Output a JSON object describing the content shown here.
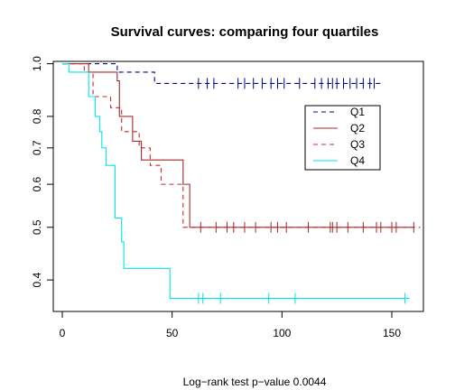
{
  "chart_data": {
    "type": "line",
    "title": "Survival curves: comparing four quartiles",
    "xlabel": "",
    "ylabel": "",
    "xlim": [
      0,
      165
    ],
    "ylim": [
      0.35,
      1.01
    ],
    "y_scale": "log",
    "x_ticks": [
      0,
      50,
      100,
      150
    ],
    "x_tick_labels": [
      "0",
      "50",
      "100",
      "150"
    ],
    "y_ticks": [
      0.4,
      0.5,
      0.6,
      0.7,
      0.8,
      1.0
    ],
    "y_tick_labels": [
      "0.4",
      "0.5",
      "0.6",
      "0.7",
      "0.8",
      "1.0"
    ],
    "grid": false,
    "legend_position": "right",
    "footnote": "Log−rank test p−value  0.0044",
    "series": [
      {
        "name": "Q1",
        "color": "#00008b",
        "dash": "5,4",
        "steps": [
          [
            0,
            1.0
          ],
          [
            25,
            1.0
          ],
          [
            25,
            0.965
          ],
          [
            42,
            0.965
          ],
          [
            42,
            0.92
          ],
          [
            145,
            0.92
          ]
        ],
        "censored_x": [
          62,
          66,
          69,
          80,
          83,
          87,
          91,
          95,
          98,
          101,
          108,
          115,
          118,
          121,
          123,
          125,
          128,
          131,
          134,
          137,
          140,
          142
        ]
      },
      {
        "name": "Q2",
        "color": "#a52a2a",
        "dash": "",
        "steps": [
          [
            0,
            1.0
          ],
          [
            12,
            1.0
          ],
          [
            12,
            0.965
          ],
          [
            25,
            0.965
          ],
          [
            25,
            0.93
          ],
          [
            26,
            0.93
          ],
          [
            26,
            0.8
          ],
          [
            32,
            0.8
          ],
          [
            32,
            0.72
          ],
          [
            36,
            0.72
          ],
          [
            36,
            0.665
          ],
          [
            55,
            0.665
          ],
          [
            55,
            0.6
          ],
          [
            58,
            0.6
          ],
          [
            58,
            0.5
          ],
          [
            160,
            0.5
          ]
        ],
        "censored_x": [
          63,
          70,
          75,
          78,
          83,
          88,
          95,
          98,
          102,
          112,
          122,
          123,
          125,
          130,
          137,
          143,
          145,
          150,
          152,
          160
        ]
      },
      {
        "name": "Q3",
        "color": "#cd2626",
        "dash": "5,4",
        "steps": [
          [
            0,
            1.0
          ],
          [
            10,
            1.0
          ],
          [
            10,
            0.965
          ],
          [
            14,
            0.965
          ],
          [
            14,
            0.87
          ],
          [
            22,
            0.87
          ],
          [
            22,
            0.83
          ],
          [
            27,
            0.83
          ],
          [
            27,
            0.75
          ],
          [
            35,
            0.75
          ],
          [
            35,
            0.7
          ],
          [
            40,
            0.7
          ],
          [
            40,
            0.65
          ],
          [
            45,
            0.65
          ],
          [
            45,
            0.6
          ],
          [
            55,
            0.6
          ],
          [
            55,
            0.5
          ],
          [
            163,
            0.5
          ]
        ],
        "censored_x": []
      },
      {
        "name": "Q4",
        "color": "#00e5ee",
        "dash": "",
        "steps": [
          [
            0,
            1.0
          ],
          [
            3,
            1.0
          ],
          [
            3,
            0.965
          ],
          [
            12,
            0.965
          ],
          [
            12,
            0.87
          ],
          [
            15,
            0.87
          ],
          [
            15,
            0.8
          ],
          [
            17,
            0.8
          ],
          [
            17,
            0.75
          ],
          [
            18,
            0.75
          ],
          [
            18,
            0.7
          ],
          [
            20,
            0.7
          ],
          [
            20,
            0.65
          ],
          [
            24,
            0.65
          ],
          [
            24,
            0.52
          ],
          [
            27,
            0.52
          ],
          [
            27,
            0.47
          ],
          [
            28,
            0.47
          ],
          [
            28,
            0.42
          ],
          [
            49,
            0.42
          ],
          [
            49,
            0.37
          ],
          [
            158,
            0.37
          ]
        ],
        "censored_x": [
          62,
          64,
          72,
          94,
          106,
          156
        ]
      }
    ]
  }
}
